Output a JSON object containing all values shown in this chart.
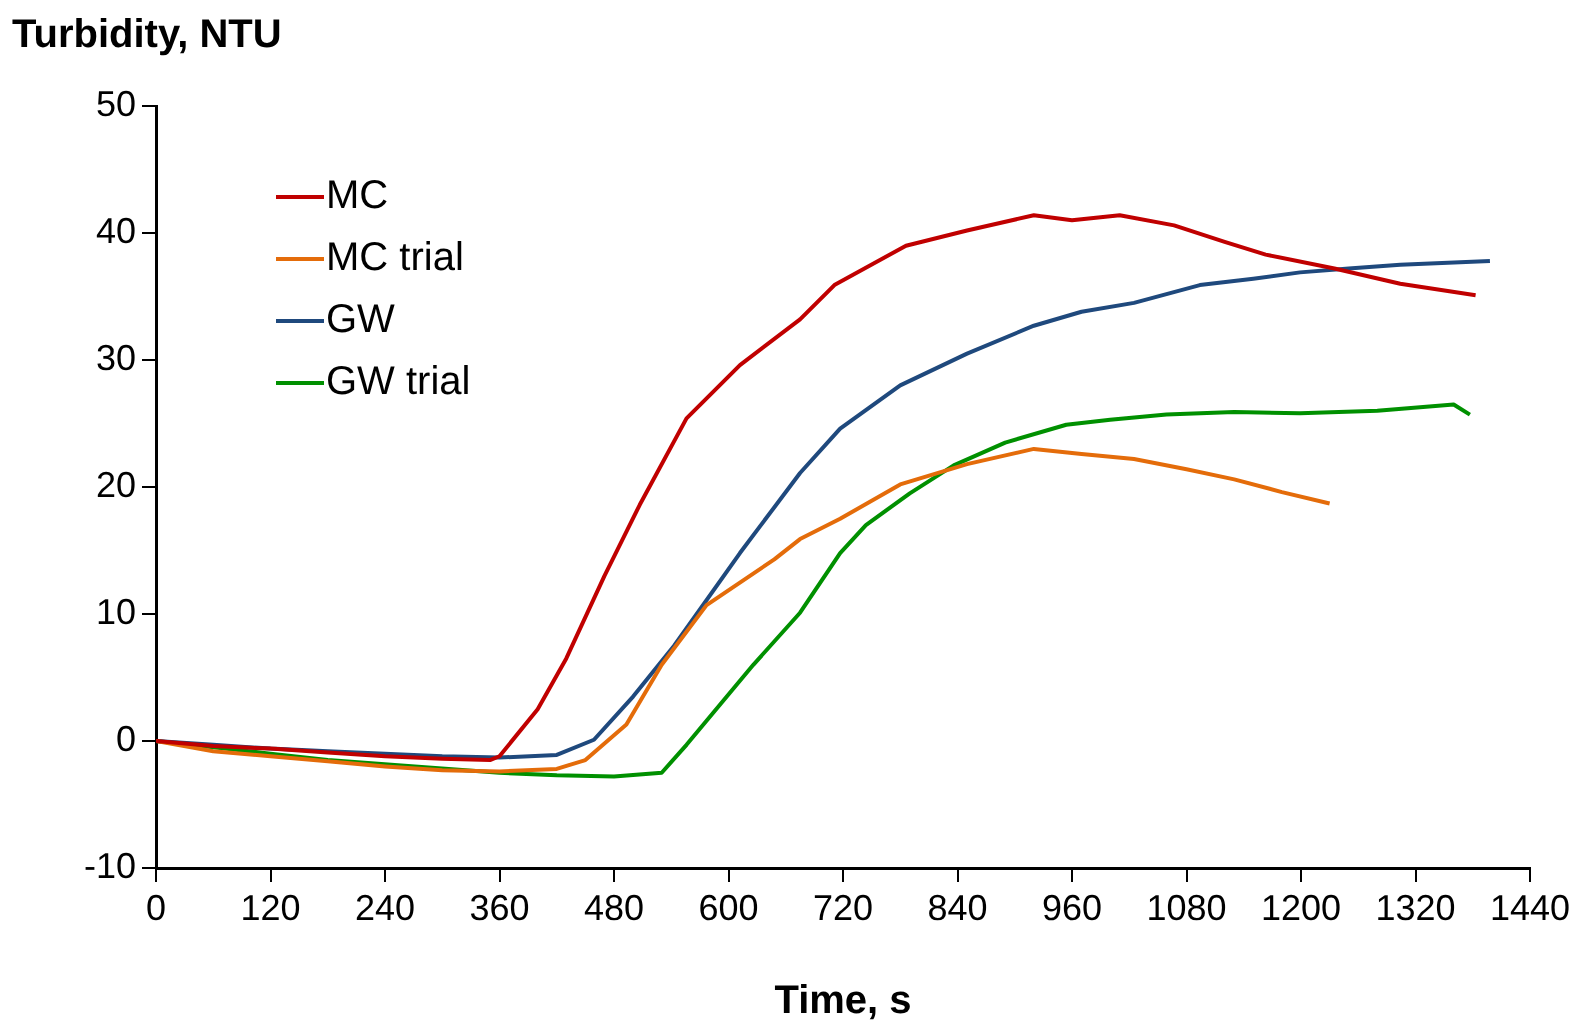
{
  "chart_data": {
    "type": "line",
    "xlabel": "Time, s",
    "ylabel": "Turbidity, NTU",
    "xlim": [
      0,
      1440
    ],
    "xticks": [
      0,
      120,
      240,
      360,
      480,
      600,
      720,
      840,
      960,
      1080,
      1200,
      1320,
      1440
    ],
    "ylim": [
      -10,
      50
    ],
    "yticks": [
      -10,
      0,
      10,
      20,
      30,
      40,
      50
    ],
    "grid": false,
    "legend": "top left",
    "marker": "none",
    "line_style": "solid",
    "series": [
      {
        "name": "MC",
        "color": "#c00000",
        "x": [
          0,
          60,
          120,
          180,
          240,
          300,
          350,
          360,
          400,
          430,
          470,
          507,
          556,
          612,
          675,
          711,
          786,
          850,
          920,
          960,
          1010,
          1067,
          1120,
          1163,
          1235,
          1304,
          1383
        ],
        "values": [
          0,
          -0.4,
          -0.6,
          -0.9,
          -1.2,
          -1.4,
          -1.5,
          -1.2,
          2.5,
          6.5,
          13,
          18.6,
          25.4,
          29.6,
          33.2,
          35.9,
          39,
          40.2,
          41.4,
          41,
          41.4,
          40.6,
          39.3,
          38.3,
          37.2,
          36,
          35.1
        ]
      },
      {
        "name": "MC trial",
        "color": "#e46c0a",
        "x": [
          0,
          60,
          120,
          180,
          240,
          300,
          360,
          420,
          450,
          493,
          530,
          577,
          648,
          675,
          717,
          780,
          850,
          920,
          970,
          1025,
          1080,
          1130,
          1180,
          1230
        ],
        "values": [
          0,
          -0.8,
          -1.2,
          -1.6,
          -2,
          -2.3,
          -2.4,
          -2.2,
          -1.5,
          1.3,
          6,
          10.7,
          14.3,
          15.9,
          17.5,
          20.2,
          21.8,
          23,
          22.6,
          22.2,
          21.4,
          20.6,
          19.6,
          18.7
        ]
      },
      {
        "name": "GW",
        "color": "#1f497d",
        "x": [
          0,
          60,
          120,
          180,
          240,
          300,
          360,
          420,
          459,
          500,
          543,
          612,
          675,
          717,
          780,
          850,
          920,
          970,
          1025,
          1094,
          1150,
          1199,
          1250,
          1304,
          1398
        ],
        "values": [
          0,
          -0.3,
          -0.6,
          -0.8,
          -1,
          -1.2,
          -1.3,
          -1.1,
          0.1,
          3.5,
          7.5,
          14.8,
          21.1,
          24.6,
          28,
          30.5,
          32.7,
          33.8,
          34.5,
          35.9,
          36.4,
          36.9,
          37.2,
          37.5,
          37.8
        ]
      },
      {
        "name": "GW trial",
        "color": "#009000",
        "x": [
          0,
          60,
          120,
          180,
          360,
          420,
          480,
          530,
          556,
          626,
          675,
          717,
          744,
          790,
          836,
          890,
          954,
          1000,
          1059,
          1130,
          1199,
          1280,
          1360,
          1377
        ],
        "values": [
          0,
          -0.5,
          -1,
          -1.5,
          -2.5,
          -2.7,
          -2.8,
          -2.5,
          -0.3,
          6,
          10.1,
          14.8,
          17,
          19.5,
          21.7,
          23.5,
          24.9,
          25.3,
          25.7,
          25.9,
          25.8,
          26,
          26.5,
          25.7
        ]
      }
    ]
  }
}
